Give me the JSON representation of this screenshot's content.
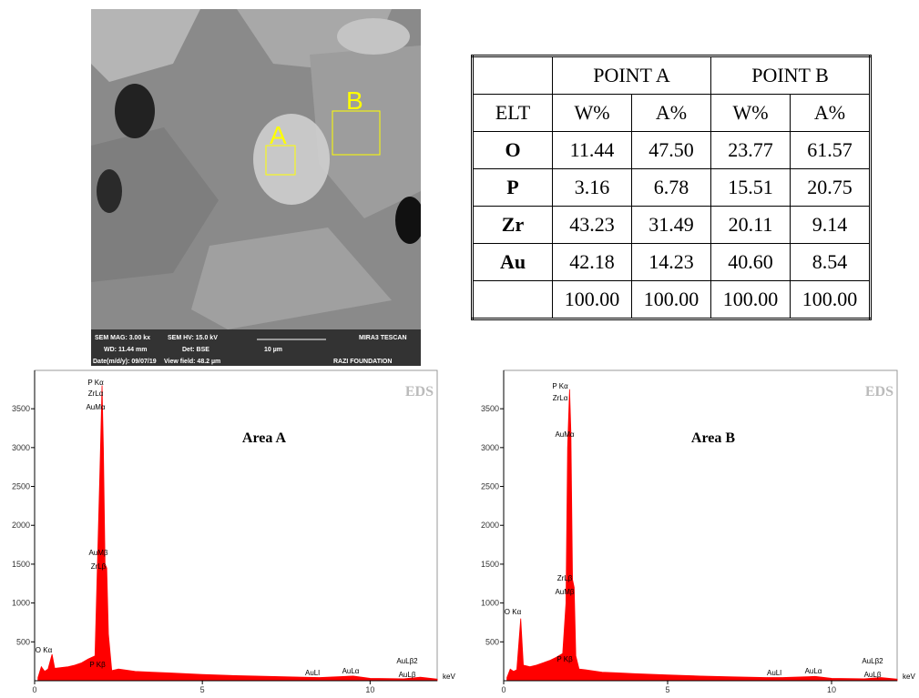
{
  "sem_image": {
    "markers": [
      "A",
      "B"
    ],
    "info": [
      "SEM MAG: 3.00 kx",
      "SEM HV: 15.0 kV",
      "MIRA3 TESCAN",
      "WD: 11.44 mm",
      "Det: BSE",
      "10 µm",
      "Date(m/d/y): 09/07/19",
      "View field: 48.2 µm",
      "RAZI FOUNDATION"
    ]
  },
  "table": {
    "header": [
      "POINT A",
      "POINT B"
    ],
    "rows": [
      [
        "ELT",
        "W%",
        "A%",
        "W%",
        "A%"
      ],
      [
        "O",
        "11.44",
        "47.50",
        "23.77",
        "61.57"
      ],
      [
        "P",
        "3.16",
        "6.78",
        "15.51",
        "20.75"
      ],
      [
        "Zr",
        "43.23",
        "31.49",
        "20.11",
        "9.14"
      ],
      [
        "Au",
        "42.18",
        "14.23",
        "40.60",
        "8.54"
      ],
      [
        "",
        "100.00",
        "100.00",
        "100.00",
        "100.00"
      ]
    ]
  },
  "chart_data": [
    {
      "type": "area",
      "title": "Area A",
      "watermark": "EDS",
      "xlabel": "keV",
      "color": "#ff0000",
      "x": [
        0.1,
        0.2,
        0.3,
        0.4,
        0.52,
        0.6,
        0.8,
        1.0,
        1.2,
        1.4,
        1.6,
        1.8,
        1.95,
        2.01,
        2.05,
        2.1,
        2.15,
        2.2,
        2.3,
        2.5,
        3,
        3.5,
        4,
        5,
        6,
        7,
        8,
        8.5,
        9.5,
        10,
        11,
        11.5,
        12
      ],
      "values": [
        40,
        180,
        120,
        150,
        340,
        160,
        170,
        180,
        200,
        230,
        280,
        320,
        2750,
        3800,
        3000,
        1500,
        1450,
        600,
        130,
        150,
        120,
        110,
        100,
        80,
        65,
        55,
        45,
        40,
        60,
        30,
        25,
        45,
        20
      ],
      "xlim": [
        0,
        12
      ],
      "ylim": [
        0,
        3900
      ],
      "xticks": [
        0,
        5,
        10
      ],
      "yticks": [
        500,
        1000,
        1500,
        2000,
        2500,
        3000,
        3500
      ],
      "annotations": [
        "P Kα",
        "ZrLα",
        "AuMα",
        "AuMβ",
        "ZrLβ",
        "O Kα",
        "P Kβ",
        "AuLl",
        "AuLα",
        "AuLβ2",
        "AuLβ"
      ]
    },
    {
      "type": "area",
      "title": "Area B",
      "watermark": "EDS",
      "xlabel": "keV",
      "color": "#ff0000",
      "x": [
        0.1,
        0.2,
        0.3,
        0.4,
        0.52,
        0.6,
        0.8,
        1.0,
        1.2,
        1.4,
        1.6,
        1.8,
        1.9,
        1.95,
        2.01,
        2.05,
        2.1,
        2.15,
        2.2,
        2.3,
        2.5,
        3,
        3.5,
        4,
        5,
        6,
        7,
        8,
        8.5,
        9.5,
        10,
        11,
        11.5,
        12
      ],
      "values": [
        40,
        150,
        120,
        140,
        800,
        200,
        180,
        200,
        230,
        260,
        300,
        350,
        1000,
        3000,
        3750,
        3200,
        1300,
        1200,
        320,
        150,
        140,
        110,
        100,
        90,
        75,
        60,
        50,
        40,
        40,
        55,
        30,
        25,
        40,
        20
      ],
      "xlim": [
        0,
        12
      ],
      "ylim": [
        0,
        3900
      ],
      "xticks": [
        0,
        5,
        10
      ],
      "yticks": [
        500,
        1000,
        1500,
        2000,
        2500,
        3000,
        3500
      ],
      "annotations": [
        "P Kα",
        "ZrLα",
        "AuMα",
        "ZrLβ",
        "AuMβ",
        "O Kα",
        "P Kβ",
        "AuLl",
        "AuLα",
        "AuLβ2",
        "AuLβ"
      ]
    }
  ]
}
